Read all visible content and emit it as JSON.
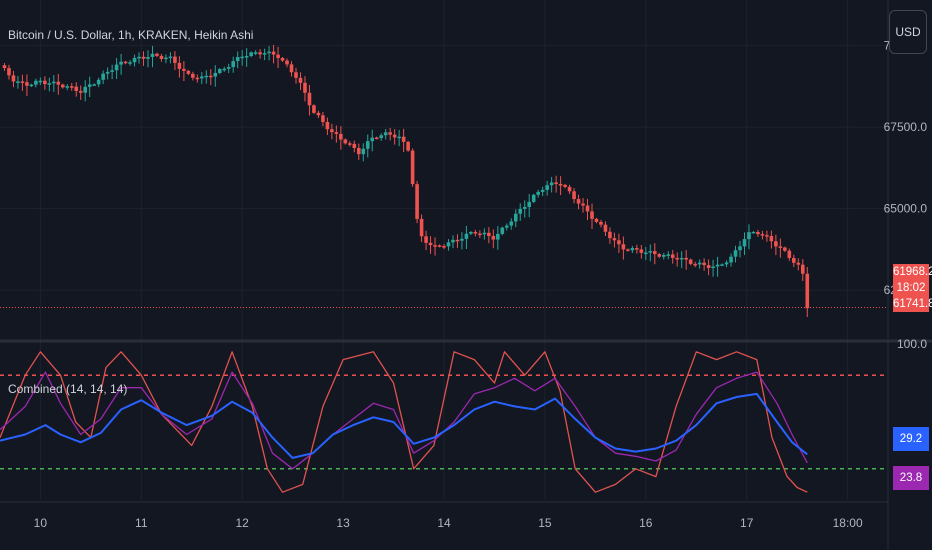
{
  "symbol_legend": "Bitcoin / U.S. Dollar, 1h, KRAKEN, Heikin Ashi",
  "indicator_legend": "Combined (14, 14, 14)",
  "currency_button": "USD",
  "price_axis": {
    "ticks": [
      "70000.0",
      "67500.0",
      "65000.0",
      "62500.0"
    ]
  },
  "indicator_axis": {
    "ticks": [
      "100.0"
    ]
  },
  "price_tags": {
    "last": "61968.2",
    "countdown": "18:02",
    "low": "61741.8"
  },
  "indicator_tags": {
    "blue": "29.2",
    "purple": "23.8"
  },
  "time_axis": [
    "10",
    "11",
    "12",
    "13",
    "14",
    "15",
    "16",
    "17",
    "18:00"
  ],
  "colors": {
    "up": "#26a69a",
    "down": "#ef5350",
    "rsi": "#e0534f",
    "mfi": "#9c27b0",
    "avg": "#2962ff",
    "ob": "#ef5350",
    "os": "#4caf50"
  },
  "chart_data": [
    {
      "type": "candlestick",
      "style": "Heikin Ashi",
      "ylim": [
        61000,
        71400
      ],
      "x": [
        9.6,
        18.4
      ],
      "close_path": [
        [
          9.6,
          69400
        ],
        [
          9.75,
          68900
        ],
        [
          9.85,
          68800
        ],
        [
          10.0,
          68900
        ],
        [
          10.2,
          68800
        ],
        [
          10.4,
          68600
        ],
        [
          10.55,
          68900
        ],
        [
          10.75,
          69400
        ],
        [
          10.95,
          69600
        ],
        [
          11.1,
          69700
        ],
        [
          11.3,
          69600
        ],
        [
          11.45,
          69100
        ],
        [
          11.6,
          69000
        ],
        [
          11.8,
          69250
        ],
        [
          12.0,
          69700
        ],
        [
          12.2,
          69800
        ],
        [
          12.35,
          69700
        ],
        [
          12.55,
          69000
        ],
        [
          12.7,
          68000
        ],
        [
          12.9,
          67300
        ],
        [
          13.05,
          67000
        ],
        [
          13.15,
          66700
        ],
        [
          13.3,
          67200
        ],
        [
          13.45,
          67300
        ],
        [
          13.55,
          67200
        ],
        [
          13.65,
          66800
        ],
        [
          13.75,
          64200
        ],
        [
          13.9,
          63800
        ],
        [
          14.1,
          64000
        ],
        [
          14.3,
          64300
        ],
        [
          14.5,
          64100
        ],
        [
          14.65,
          64600
        ],
        [
          14.8,
          65100
        ],
        [
          15.0,
          65700
        ],
        [
          15.15,
          65800
        ],
        [
          15.3,
          65300
        ],
        [
          15.45,
          64800
        ],
        [
          15.6,
          64300
        ],
        [
          15.75,
          63800
        ],
        [
          15.95,
          63700
        ],
        [
          16.1,
          63600
        ],
        [
          16.3,
          63500
        ],
        [
          16.5,
          63300
        ],
        [
          16.7,
          63200
        ],
        [
          16.85,
          63500
        ],
        [
          17.0,
          64200
        ],
        [
          17.1,
          64300
        ],
        [
          17.25,
          64000
        ],
        [
          17.4,
          63600
        ],
        [
          17.55,
          63100
        ],
        [
          17.6,
          62000
        ]
      ],
      "last_price": 61968.2,
      "ticks": [
        "70000.0",
        "67500.0",
        "65000.0",
        "62500.0"
      ]
    },
    {
      "type": "line",
      "title": "Combined (14, 14, 14)",
      "ylim": [
        0,
        100
      ],
      "levels": {
        "overbought": 80,
        "oversold": 20
      },
      "series": [
        {
          "color": "#e0534f",
          "values": [
            [
              9.6,
              40
            ],
            [
              9.85,
              80
            ],
            [
              10.0,
              95
            ],
            [
              10.2,
              80
            ],
            [
              10.35,
              50
            ],
            [
              10.5,
              40
            ],
            [
              10.65,
              85
            ],
            [
              10.8,
              95
            ],
            [
              11.0,
              80
            ],
            [
              11.2,
              55
            ],
            [
              11.5,
              35
            ],
            [
              11.7,
              60
            ],
            [
              11.9,
              95
            ],
            [
              12.1,
              60
            ],
            [
              12.25,
              20
            ],
            [
              12.4,
              5
            ],
            [
              12.6,
              10
            ],
            [
              12.8,
              60
            ],
            [
              13.0,
              90
            ],
            [
              13.3,
              95
            ],
            [
              13.5,
              75
            ],
            [
              13.7,
              20
            ],
            [
              13.9,
              35
            ],
            [
              14.1,
              95
            ],
            [
              14.3,
              90
            ],
            [
              14.5,
              75
            ],
            [
              14.6,
              95
            ],
            [
              14.8,
              80
            ],
            [
              15.0,
              95
            ],
            [
              15.15,
              70
            ],
            [
              15.3,
              20
            ],
            [
              15.5,
              5
            ],
            [
              15.7,
              10
            ],
            [
              15.9,
              20
            ],
            [
              16.1,
              15
            ],
            [
              16.3,
              60
            ],
            [
              16.5,
              95
            ],
            [
              16.7,
              90
            ],
            [
              16.9,
              95
            ],
            [
              17.1,
              90
            ],
            [
              17.25,
              40
            ],
            [
              17.4,
              15
            ],
            [
              17.5,
              8
            ],
            [
              17.6,
              5
            ]
          ]
        },
        {
          "color": "#9c27b0",
          "values": [
            [
              9.6,
              45
            ],
            [
              9.85,
              60
            ],
            [
              10.05,
              82
            ],
            [
              10.2,
              62
            ],
            [
              10.4,
              42
            ],
            [
              10.6,
              52
            ],
            [
              10.8,
              72
            ],
            [
              11.0,
              72
            ],
            [
              11.2,
              55
            ],
            [
              11.45,
              42
            ],
            [
              11.7,
              52
            ],
            [
              11.9,
              82
            ],
            [
              12.1,
              62
            ],
            [
              12.3,
              30
            ],
            [
              12.5,
              20
            ],
            [
              12.7,
              30
            ],
            [
              12.9,
              42
            ],
            [
              13.1,
              52
            ],
            [
              13.3,
              62
            ],
            [
              13.5,
              58
            ],
            [
              13.7,
              30
            ],
            [
              13.9,
              38
            ],
            [
              14.1,
              50
            ],
            [
              14.3,
              68
            ],
            [
              14.5,
              72
            ],
            [
              14.7,
              78
            ],
            [
              14.9,
              70
            ],
            [
              15.1,
              78
            ],
            [
              15.3,
              60
            ],
            [
              15.5,
              40
            ],
            [
              15.7,
              30
            ],
            [
              15.9,
              28
            ],
            [
              16.1,
              25
            ],
            [
              16.3,
              32
            ],
            [
              16.5,
              55
            ],
            [
              16.7,
              72
            ],
            [
              16.9,
              78
            ],
            [
              17.1,
              82
            ],
            [
              17.3,
              62
            ],
            [
              17.45,
              42
            ],
            [
              17.6,
              23.8
            ]
          ]
        },
        {
          "color": "#2962ff",
          "values": [
            [
              9.6,
              38
            ],
            [
              9.85,
              42
            ],
            [
              10.05,
              48
            ],
            [
              10.2,
              42
            ],
            [
              10.4,
              37
            ],
            [
              10.6,
              43
            ],
            [
              10.8,
              58
            ],
            [
              11.0,
              64
            ],
            [
              11.2,
              56
            ],
            [
              11.45,
              48
            ],
            [
              11.7,
              54
            ],
            [
              11.9,
              63
            ],
            [
              12.1,
              56
            ],
            [
              12.3,
              40
            ],
            [
              12.5,
              27
            ],
            [
              12.7,
              30
            ],
            [
              12.9,
              42
            ],
            [
              13.1,
              48
            ],
            [
              13.3,
              53
            ],
            [
              13.5,
              50
            ],
            [
              13.7,
              36
            ],
            [
              13.9,
              40
            ],
            [
              14.1,
              48
            ],
            [
              14.3,
              58
            ],
            [
              14.5,
              63
            ],
            [
              14.7,
              60
            ],
            [
              14.9,
              58
            ],
            [
              15.1,
              65
            ],
            [
              15.3,
              52
            ],
            [
              15.5,
              40
            ],
            [
              15.7,
              33
            ],
            [
              15.9,
              31
            ],
            [
              16.1,
              33
            ],
            [
              16.3,
              38
            ],
            [
              16.5,
              48
            ],
            [
              16.7,
              62
            ],
            [
              16.9,
              66
            ],
            [
              17.1,
              68
            ],
            [
              17.3,
              50
            ],
            [
              17.45,
              37
            ],
            [
              17.6,
              29.2
            ]
          ]
        }
      ]
    }
  ]
}
